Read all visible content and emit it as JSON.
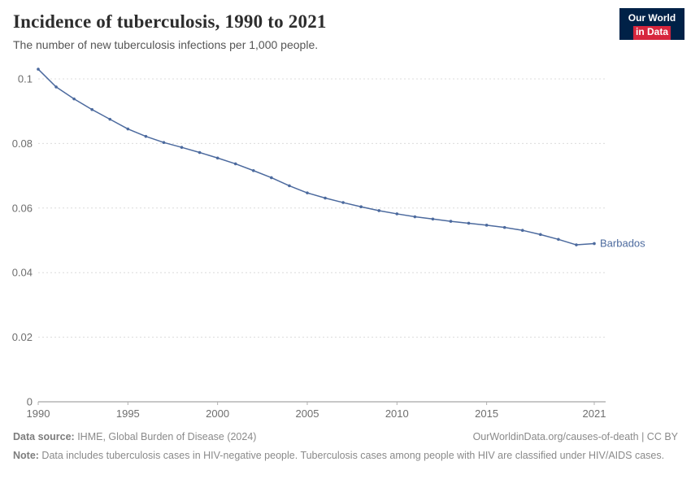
{
  "header": {
    "title": "Incidence of tuberculosis, 1990 to 2021",
    "subtitle": "The number of new tuberculosis infections per 1,000 people.",
    "logo": {
      "line1": "Our World",
      "line2": "in Data",
      "bg_color": "#002147",
      "accent_color": "#d7263d"
    }
  },
  "chart_data": {
    "type": "line",
    "title": "Incidence of tuberculosis, 1990 to 2021",
    "subtitle": "The number of new tuberculosis infections per 1,000 people.",
    "xlabel": "",
    "ylabel": "",
    "xlim": [
      1990,
      2021
    ],
    "ylim": [
      0,
      0.1
    ],
    "yticks": [
      0,
      0.02,
      0.04,
      0.06,
      0.08,
      0.1
    ],
    "ytick_labels": [
      "0",
      "0.02",
      "0.04",
      "0.06",
      "0.08",
      "0.1"
    ],
    "xticks": [
      1990,
      1995,
      2000,
      2005,
      2010,
      2015,
      2021
    ],
    "grid": "horizontal dashed",
    "legend_position": "end-of-line label",
    "series": [
      {
        "name": "Barbados",
        "color": "#4c6a9e",
        "x": [
          1990,
          1991,
          1992,
          1993,
          1994,
          1995,
          1996,
          1997,
          1998,
          1999,
          2000,
          2001,
          2002,
          2003,
          2004,
          2005,
          2006,
          2007,
          2008,
          2009,
          2010,
          2011,
          2012,
          2013,
          2014,
          2015,
          2016,
          2017,
          2018,
          2019,
          2020,
          2021
        ],
        "values": [
          0.103,
          0.0975,
          0.0938,
          0.0905,
          0.0875,
          0.0845,
          0.0822,
          0.0803,
          0.0788,
          0.0772,
          0.0755,
          0.0737,
          0.0716,
          0.0694,
          0.0669,
          0.0647,
          0.0631,
          0.0617,
          0.0604,
          0.0592,
          0.0582,
          0.0573,
          0.0566,
          0.0559,
          0.0553,
          0.0547,
          0.054,
          0.0531,
          0.0518,
          0.0503,
          0.0486,
          0.049
        ]
      }
    ]
  },
  "footer": {
    "source_label": "Data source:",
    "source_text": " IHME, Global Burden of Disease (2024)",
    "link_text": "OurWorldinData.org/causes-of-death | CC BY",
    "note_label": "Note:",
    "note_text": " Data includes tuberculosis cases in HIV-negative people. Tuberculosis cases among people with HIV are classified under HIV/AIDS cases."
  }
}
